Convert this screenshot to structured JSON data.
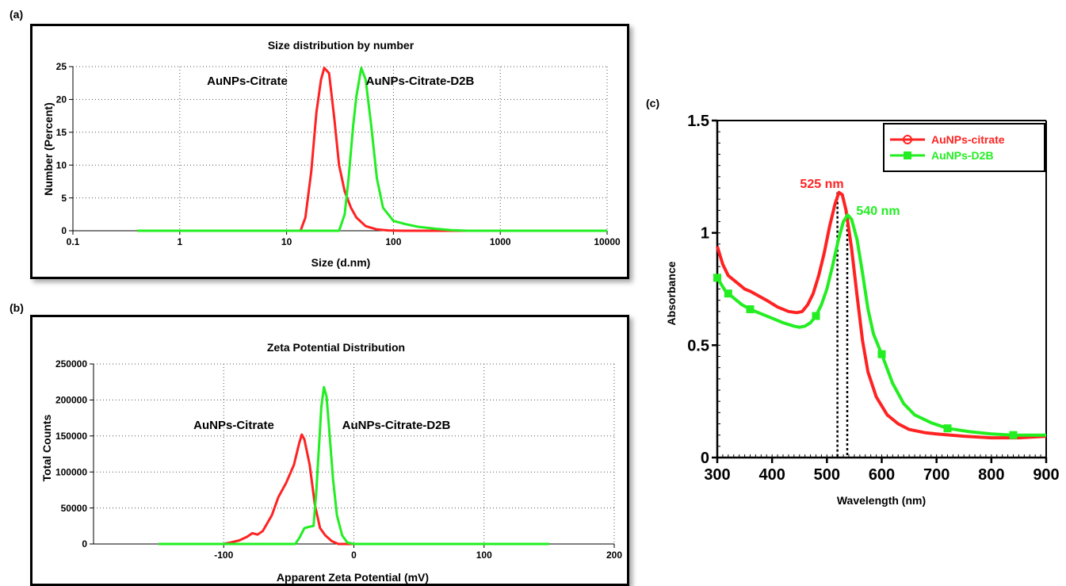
{
  "panels": {
    "a": "(a)",
    "b": "(b)",
    "c": "(c)"
  },
  "colors": {
    "red": "#ff2222",
    "green": "#22ee22"
  },
  "chart_data": [
    {
      "id": "a",
      "type": "line",
      "title": "Size distribution by number",
      "xlabel": "Size (d.nm)",
      "ylabel": "Number (Percent)",
      "xscale": "log",
      "xlim": [
        0.1,
        10000
      ],
      "ylim": [
        0,
        25
      ],
      "xticks": [
        0.1,
        1,
        10,
        100,
        1000,
        10000
      ],
      "xtick_labels": [
        "0.1",
        "1",
        "10",
        "100",
        "1000",
        "10000"
      ],
      "yticks": [
        0,
        5,
        10,
        15,
        20,
        25
      ],
      "ytick_labels": [
        "0",
        "5",
        "10",
        "15",
        "20",
        "25"
      ],
      "grid": true,
      "annotations": [
        "AuNPs-Citrate",
        "AuNPs-Citrate-D2B"
      ],
      "series": [
        {
          "color": "red",
          "points": [
            [
              0.4,
              0
            ],
            [
              13.5,
              0
            ],
            [
              15,
              2
            ],
            [
              17,
              9
            ],
            [
              19,
              18
            ],
            [
              21,
              23
            ],
            [
              22.5,
              24.8
            ],
            [
              25,
              24
            ],
            [
              28,
              17
            ],
            [
              31,
              10
            ],
            [
              35,
              6
            ],
            [
              40,
              3.5
            ],
            [
              45,
              2
            ],
            [
              55,
              0.7
            ],
            [
              70,
              0.2
            ],
            [
              90,
              0.05
            ],
            [
              120,
              0
            ],
            [
              10000,
              0
            ]
          ]
        },
        {
          "color": "green",
          "points": [
            [
              0.4,
              0
            ],
            [
              31,
              0
            ],
            [
              35,
              2.5
            ],
            [
              38,
              8
            ],
            [
              42,
              16
            ],
            [
              45,
              20.5
            ],
            [
              50,
              24.8
            ],
            [
              55,
              23
            ],
            [
              62,
              16
            ],
            [
              70,
              8
            ],
            [
              80,
              3.5
            ],
            [
              100,
              1.5
            ],
            [
              130,
              1
            ],
            [
              170,
              0.6
            ],
            [
              250,
              0.3
            ],
            [
              350,
              0.1
            ],
            [
              500,
              0
            ],
            [
              10000,
              0
            ]
          ]
        }
      ]
    },
    {
      "id": "b",
      "type": "line",
      "title": "Zeta Potential Distribution",
      "xlabel": "Apparent Zeta Potential (mV)",
      "ylabel": "Total Counts",
      "xlim": [
        -200,
        200
      ],
      "ylim": [
        0,
        250000
      ],
      "xticks": [
        -100,
        0,
        100,
        200
      ],
      "xtick_labels": [
        "-100",
        "0",
        "100",
        "200"
      ],
      "yticks": [
        0,
        50000,
        100000,
        150000,
        200000,
        250000
      ],
      "ytick_labels": [
        "0",
        "50000",
        "100000",
        "150000",
        "200000",
        "250000"
      ],
      "grid": true,
      "annotations": [
        "AuNPs-Citrate",
        "AuNPs-Citrate-D2B"
      ],
      "series": [
        {
          "color": "red",
          "points": [
            [
              -150,
              0
            ],
            [
              -100,
              0
            ],
            [
              -95,
              2000
            ],
            [
              -88,
              5000
            ],
            [
              -82,
              10000
            ],
            [
              -78,
              15000
            ],
            [
              -74,
              13000
            ],
            [
              -70,
              18000
            ],
            [
              -63,
              40000
            ],
            [
              -58,
              65000
            ],
            [
              -52,
              85000
            ],
            [
              -46,
              110000
            ],
            [
              -42,
              140000
            ],
            [
              -40,
              152000
            ],
            [
              -38,
              145000
            ],
            [
              -34,
              110000
            ],
            [
              -30,
              55000
            ],
            [
              -26,
              22000
            ],
            [
              -22,
              12000
            ],
            [
              -17,
              4000
            ],
            [
              -12,
              0
            ],
            [
              150,
              0
            ]
          ]
        },
        {
          "color": "green",
          "points": [
            [
              -150,
              0
            ],
            [
              -45,
              0
            ],
            [
              -42,
              8000
            ],
            [
              -38,
              22000
            ],
            [
              -34,
              24000
            ],
            [
              -31,
              25000
            ],
            [
              -29,
              70000
            ],
            [
              -27,
              130000
            ],
            [
              -25,
              190000
            ],
            [
              -23,
              218000
            ],
            [
              -21,
              205000
            ],
            [
              -19,
              160000
            ],
            [
              -16,
              90000
            ],
            [
              -13,
              40000
            ],
            [
              -9,
              12000
            ],
            [
              -5,
              2000
            ],
            [
              0,
              0
            ],
            [
              150,
              0
            ]
          ]
        }
      ]
    },
    {
      "id": "c",
      "type": "line",
      "xlabel": "Wavelength (nm)",
      "ylabel": "Absorbance",
      "xlim": [
        300,
        900
      ],
      "ylim": [
        0,
        1.5
      ],
      "xticks": [
        300,
        400,
        500,
        600,
        700,
        800,
        900
      ],
      "xtick_labels": [
        "300",
        "400",
        "500",
        "600",
        "700",
        "800",
        "900"
      ],
      "yticks": [
        0,
        0.5,
        1,
        1.5
      ],
      "ytick_labels": [
        "0",
        "0.5",
        "1",
        "1.5"
      ],
      "grid": false,
      "legend": "top-right",
      "peak_labels": [
        {
          "text": "525 nm",
          "x": 525,
          "color": "red"
        },
        {
          "text": "540 nm",
          "x": 540,
          "color": "green"
        }
      ],
      "series": [
        {
          "name": "AuNPs-citrate",
          "color": "red",
          "marker": "circle",
          "points": [
            [
              300,
              0.94
            ],
            [
              310,
              0.86
            ],
            [
              320,
              0.81
            ],
            [
              330,
              0.79
            ],
            [
              340,
              0.77
            ],
            [
              350,
              0.75
            ],
            [
              360,
              0.74
            ],
            [
              375,
              0.72
            ],
            [
              390,
              0.7
            ],
            [
              410,
              0.67
            ],
            [
              430,
              0.65
            ],
            [
              445,
              0.645
            ],
            [
              455,
              0.65
            ],
            [
              465,
              0.68
            ],
            [
              475,
              0.73
            ],
            [
              485,
              0.81
            ],
            [
              495,
              0.91
            ],
            [
              505,
              1.03
            ],
            [
              515,
              1.13
            ],
            [
              522,
              1.18
            ],
            [
              528,
              1.17
            ],
            [
              535,
              1.1
            ],
            [
              545,
              0.93
            ],
            [
              555,
              0.72
            ],
            [
              565,
              0.52
            ],
            [
              575,
              0.38
            ],
            [
              590,
              0.27
            ],
            [
              610,
              0.19
            ],
            [
              630,
              0.15
            ],
            [
              650,
              0.125
            ],
            [
              680,
              0.11
            ],
            [
              700,
              0.105
            ],
            [
              750,
              0.095
            ],
            [
              800,
              0.088
            ],
            [
              850,
              0.088
            ],
            [
              900,
              0.095
            ]
          ]
        },
        {
          "name": "AuNPs-D2B",
          "color": "green",
          "marker": "square",
          "points": [
            [
              300,
              0.8
            ],
            [
              315,
              0.74
            ],
            [
              330,
              0.71
            ],
            [
              345,
              0.68
            ],
            [
              360,
              0.66
            ],
            [
              380,
              0.64
            ],
            [
              400,
              0.62
            ],
            [
              420,
              0.6
            ],
            [
              440,
              0.585
            ],
            [
              450,
              0.58
            ],
            [
              460,
              0.585
            ],
            [
              470,
              0.6
            ],
            [
              480,
              0.63
            ],
            [
              490,
              0.68
            ],
            [
              500,
              0.75
            ],
            [
              510,
              0.85
            ],
            [
              520,
              0.96
            ],
            [
              530,
              1.05
            ],
            [
              538,
              1.08
            ],
            [
              545,
              1.06
            ],
            [
              555,
              0.97
            ],
            [
              565,
              0.82
            ],
            [
              575,
              0.66
            ],
            [
              585,
              0.55
            ],
            [
              600,
              0.46
            ],
            [
              620,
              0.33
            ],
            [
              640,
              0.24
            ],
            [
              660,
              0.19
            ],
            [
              690,
              0.155
            ],
            [
              720,
              0.13
            ],
            [
              760,
              0.115
            ],
            [
              800,
              0.105
            ],
            [
              840,
              0.1
            ],
            [
              900,
              0.1
            ]
          ],
          "markers_at": [
            300,
            320,
            360,
            480,
            600,
            720,
            840
          ]
        }
      ]
    }
  ]
}
